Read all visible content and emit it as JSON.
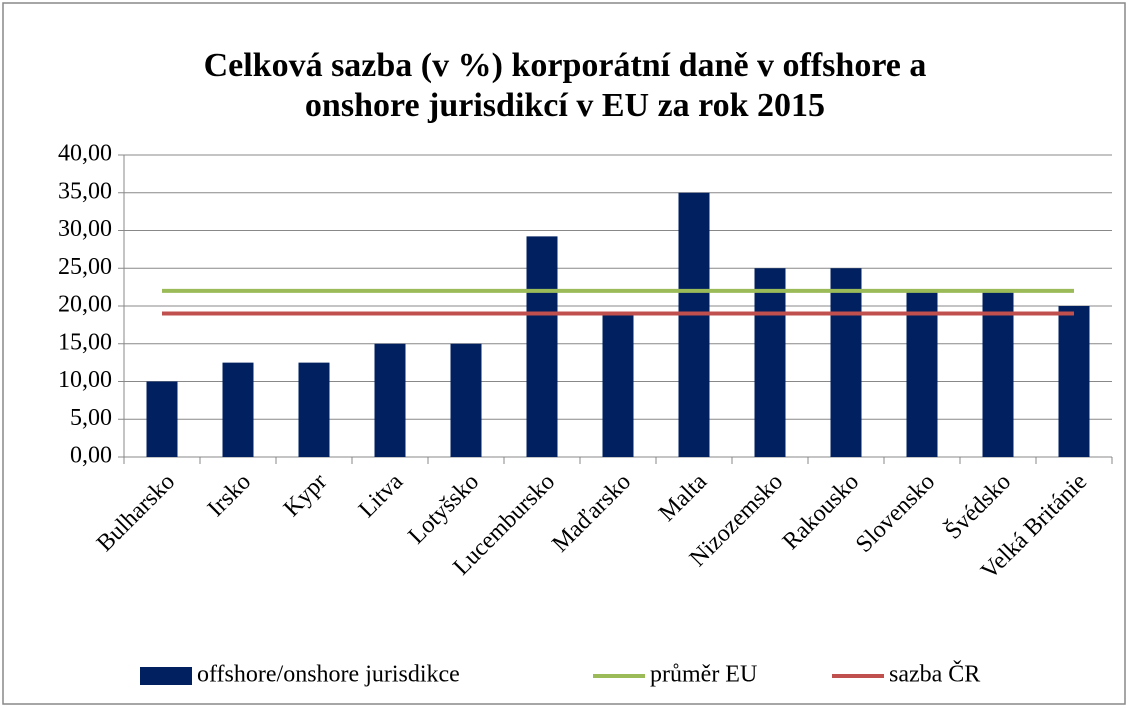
{
  "chart_data": {
    "type": "bar",
    "title": "Celková sazba (v %) korporátní daně v offshore a onshore jurisdikcí v EU za rok 2015",
    "categories": [
      "Bulharsko",
      "Irsko",
      "Kypr",
      "Litva",
      "Lotyšsko",
      "Lucembursko",
      "Maďarsko",
      "Malta",
      "Nizozemsko",
      "Rakousko",
      "Slovensko",
      "Švédsko",
      "Velká Británie"
    ],
    "series": [
      {
        "name": "offshore/onshore jurisdikce",
        "type": "bar",
        "color": "#002060",
        "values": [
          10,
          12.5,
          12.5,
          15,
          15,
          29.22,
          19,
          35,
          25,
          25,
          22,
          22,
          20
        ]
      },
      {
        "name": "průměr EU",
        "type": "line",
        "color": "#9bbb59",
        "values": [
          22,
          22,
          22,
          22,
          22,
          22,
          22,
          22,
          22,
          22,
          22,
          22,
          22
        ]
      },
      {
        "name": "sazba ČR",
        "type": "line",
        "color": "#c0504d",
        "values": [
          19,
          19,
          19,
          19,
          19,
          19,
          19,
          19,
          19,
          19,
          19,
          19,
          19
        ]
      }
    ],
    "ylim": [
      0,
      40
    ],
    "yticks": [
      {
        "value": 0,
        "label": "0,00"
      },
      {
        "value": 5,
        "label": "5,00"
      },
      {
        "value": 10,
        "label": "10,00"
      },
      {
        "value": 15,
        "label": "15,00"
      },
      {
        "value": 20,
        "label": "20,00"
      },
      {
        "value": 25,
        "label": "25,00"
      },
      {
        "value": 30,
        "label": "30,00"
      },
      {
        "value": 35,
        "label": "35,00"
      },
      {
        "value": 40,
        "label": "40,00"
      }
    ],
    "grid": true,
    "legend": "bottom"
  }
}
